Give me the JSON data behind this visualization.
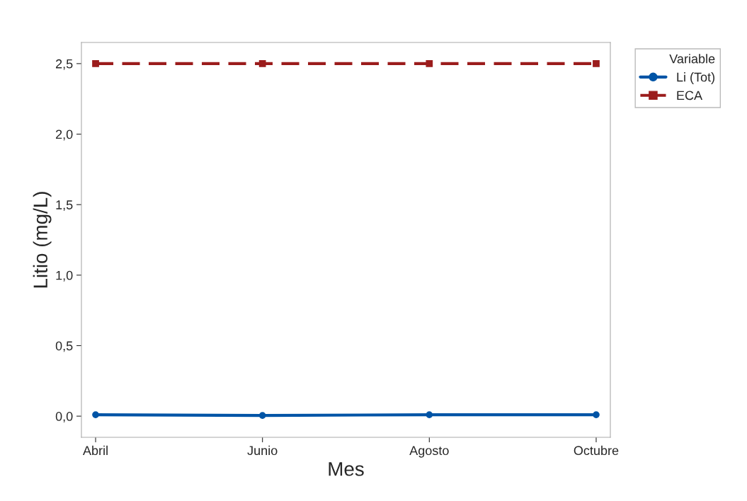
{
  "chart_data": {
    "type": "line",
    "xlabel": "Mes",
    "ylabel": "Litio (mg/L)",
    "legend_title": "Variable",
    "categories": [
      "Abril",
      "Junio",
      "Agosto",
      "Octubre"
    ],
    "series": [
      {
        "name": "Li (Tot)",
        "color": "#0054a6",
        "values": [
          0.01,
          0.005,
          0.01,
          0.01
        ],
        "marker": "circle",
        "line_style": "solid"
      },
      {
        "name": "ECA",
        "color": "#9b1c1c",
        "values": [
          2.5,
          2.5,
          2.5,
          2.5
        ],
        "marker": "square",
        "line_style": "dashed"
      }
    ],
    "ylim": [
      -0.15,
      2.65
    ],
    "yticks": [
      {
        "value": 0,
        "label": "0,0"
      },
      {
        "value": 0.5,
        "label": "0,5"
      },
      {
        "value": 1,
        "label": "1,0"
      },
      {
        "value": 1.5,
        "label": "1,5"
      },
      {
        "value": 2,
        "label": "2,0"
      },
      {
        "value": 2.5,
        "label": "2,5"
      }
    ],
    "grid": false,
    "legend": "top right"
  }
}
